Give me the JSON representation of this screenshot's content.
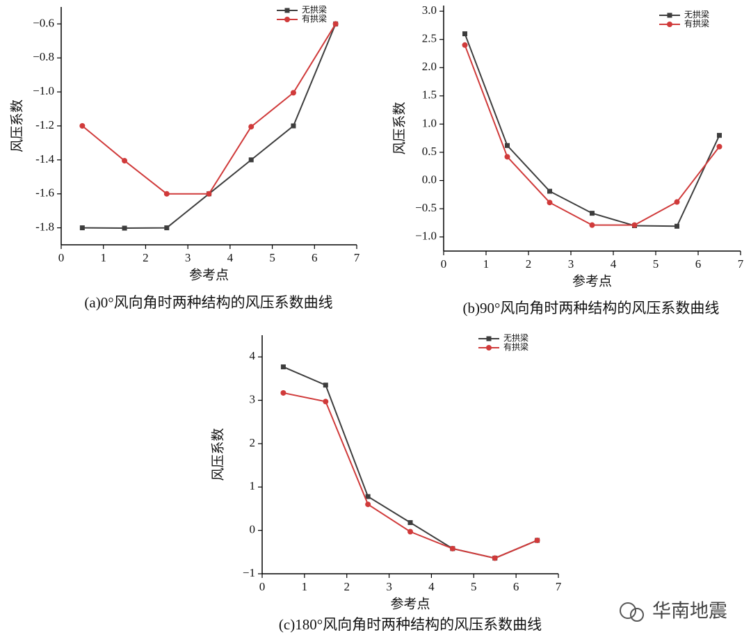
{
  "chart_data": [
    {
      "type": "line",
      "caption": "(a)0°风向角时两种结构的风压系数曲线",
      "x_label": "参考点",
      "y_label": "风压系数",
      "x": [
        0.5,
        1.5,
        2.5,
        3.5,
        4.5,
        5.5,
        6.5
      ],
      "series": [
        {
          "name": "无拱梁",
          "color": "#3d3d3d",
          "marker": "square",
          "values": [
            -1.8,
            -1.802,
            -1.8,
            -1.6,
            -1.4,
            -1.2,
            -0.6
          ]
        },
        {
          "name": "有拱梁",
          "color": "#d03a3a",
          "marker": "circle",
          "values": [
            -1.2,
            -1.405,
            -1.6,
            -1.6,
            -1.205,
            -1.005,
            -0.6
          ]
        }
      ],
      "xlim": [
        0,
        7
      ],
      "xticks": [
        0,
        1,
        2,
        3,
        4,
        5,
        6,
        7
      ],
      "ylim": [
        -1.9,
        -0.5
      ],
      "yticks": [
        {
          "value": -1.8,
          "label": "-1.8"
        },
        {
          "value": -1.6,
          "label": "-1.6"
        },
        {
          "value": -1.4,
          "label": "-1.4"
        },
        {
          "value": -1.2,
          "label": "-1.2"
        },
        {
          "value": -1.0,
          "label": "−1.0"
        },
        {
          "value": -0.8,
          "label": "−0.8"
        },
        {
          "value": -0.6,
          "label": "−0.6"
        }
      ],
      "grid": false,
      "legend": "upper right"
    },
    {
      "type": "line",
      "caption": "(b)90°风向角时两种结构的风压系数曲线",
      "x_label": "参考点",
      "y_label": "风压系数",
      "x": [
        0.5,
        1.5,
        2.5,
        3.5,
        4.5,
        5.5,
        6.5
      ],
      "series": [
        {
          "name": "无拱梁",
          "color": "#3d3d3d",
          "marker": "square",
          "values": [
            2.6,
            0.62,
            -0.19,
            -0.58,
            -0.8,
            -0.81,
            0.8
          ]
        },
        {
          "name": "有拱梁",
          "color": "#d03a3a",
          "marker": "circle",
          "values": [
            2.4,
            0.42,
            -0.39,
            -0.79,
            -0.79,
            -0.38,
            0.6
          ]
        }
      ],
      "xlim": [
        0,
        7
      ],
      "xticks": [
        0,
        1,
        2,
        3,
        4,
        5,
        6,
        7
      ],
      "ylim": [
        -1.25,
        3.1
      ],
      "yticks": [
        {
          "value": -1.0,
          "label": "−1.0"
        },
        {
          "value": -0.5,
          "label": "−0.5"
        },
        {
          "value": 0,
          "label": "0.0"
        },
        {
          "value": 0.5,
          "label": "0.5"
        },
        {
          "value": 1.0,
          "label": "1.0"
        },
        {
          "value": 1.5,
          "label": "1.5"
        },
        {
          "value": 2.0,
          "label": "2.0"
        },
        {
          "value": 2.5,
          "label": "2.5"
        },
        {
          "value": 3.0,
          "label": "3.0"
        }
      ],
      "grid": false,
      "legend": "upper right"
    },
    {
      "type": "line",
      "caption": "(c)180°风向角时两种结构的风压系数曲线",
      "x_label": "参考点",
      "y_label": "风压系数",
      "x": [
        0.5,
        1.5,
        2.5,
        3.5,
        4.5,
        5.5,
        6.5
      ],
      "series": [
        {
          "name": "无拱梁",
          "color": "#3d3d3d",
          "marker": "square",
          "values": [
            3.77,
            3.35,
            0.78,
            0.18,
            -0.42,
            -0.64,
            -0.23
          ]
        },
        {
          "name": "有拱梁",
          "color": "#d03a3a",
          "marker": "circle",
          "values": [
            3.17,
            2.97,
            0.6,
            -0.03,
            -0.42,
            -0.64,
            -0.23
          ]
        }
      ],
      "xlim": [
        0,
        7
      ],
      "xticks": [
        0,
        1,
        2,
        3,
        4,
        5,
        6,
        7
      ],
      "ylim": [
        -1,
        4.5
      ],
      "yticks": [
        {
          "value": -1,
          "label": "−1"
        },
        0,
        1,
        2,
        3,
        4
      ],
      "grid": false,
      "legend": "upper right"
    }
  ],
  "watermark": "华南地震"
}
